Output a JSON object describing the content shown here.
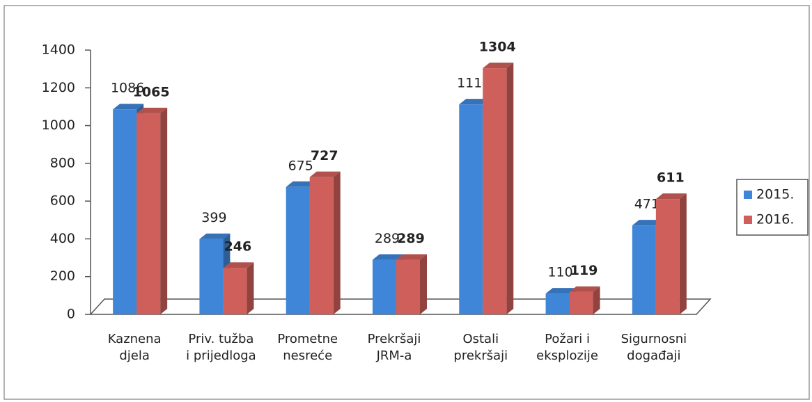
{
  "chart_data": {
    "type": "bar3d",
    "categories": [
      "Kaznena djela",
      "Priv. tužba i prijedloga",
      "Prometne nesreće",
      "Prekršaji JRM-a",
      "Ostali prekršaji",
      "Požari i eksplozije",
      "Sigurnosni događaji"
    ],
    "series": [
      {
        "name": "2015.",
        "color": "#3f86d8",
        "values": [
          1086,
          399,
          675,
          289,
          1112,
          110,
          471
        ]
      },
      {
        "name": "2016.",
        "color": "#cf5f5a",
        "values": [
          1065,
          246,
          727,
          289,
          1304,
          119,
          611
        ]
      }
    ],
    "ylim": [
      0,
      1400
    ],
    "yticks": [
      0,
      200,
      400,
      600,
      800,
      1000,
      1200,
      1400
    ],
    "legend": "right"
  }
}
